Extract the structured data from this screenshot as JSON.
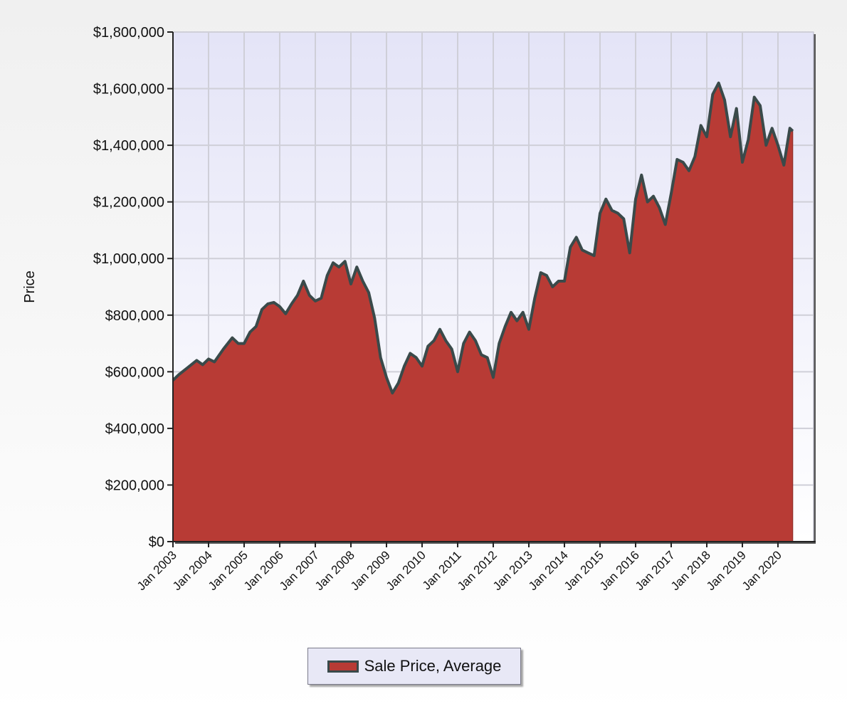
{
  "chart_data": {
    "type": "area",
    "title": "",
    "xlabel": "",
    "ylabel": "Price",
    "ylim": [
      0,
      1800000
    ],
    "y_ticks": [
      0,
      200000,
      400000,
      600000,
      800000,
      1000000,
      1200000,
      1400000,
      1600000,
      1800000
    ],
    "y_tick_labels": [
      "$0",
      "$200,000",
      "$400,000",
      "$600,000",
      "$800,000",
      "$1,000,000",
      "$1,200,000",
      "$1,400,000",
      "$1,600,000",
      "$1,800,000"
    ],
    "x_range": [
      "2003-01",
      "2020-12"
    ],
    "x_tick_labels": [
      "Jan 2003",
      "Jan 2004",
      "Jan 2005",
      "Jan 2006",
      "Jan 2007",
      "Jan 2008",
      "Jan 2009",
      "Jan 2010",
      "Jan 2011",
      "Jan 2012",
      "Jan 2013",
      "Jan 2014",
      "Jan 2015",
      "Jan 2016",
      "Jan 2017",
      "Jan 2018",
      "Jan 2019",
      "Jan 2020"
    ],
    "grid": true,
    "legend_position": "bottom-center",
    "colors": {
      "fill": "#b83b35",
      "line": "#3a4a4a",
      "plot_bg_top": "#e4e4f7",
      "plot_bg_bottom": "#ffffff"
    },
    "series": [
      {
        "name": "Sale Price, Average",
        "points": [
          [
            "2003-01",
            570000
          ],
          [
            "2003-03",
            590000
          ],
          [
            "2003-06",
            615000
          ],
          [
            "2003-09",
            640000
          ],
          [
            "2003-11",
            625000
          ],
          [
            "2004-01",
            645000
          ],
          [
            "2004-03",
            635000
          ],
          [
            "2004-06",
            680000
          ],
          [
            "2004-09",
            720000
          ],
          [
            "2004-11",
            700000
          ],
          [
            "2005-01",
            700000
          ],
          [
            "2005-03",
            740000
          ],
          [
            "2005-05",
            760000
          ],
          [
            "2005-07",
            820000
          ],
          [
            "2005-09",
            840000
          ],
          [
            "2005-11",
            845000
          ],
          [
            "2006-01",
            830000
          ],
          [
            "2006-03",
            805000
          ],
          [
            "2006-05",
            840000
          ],
          [
            "2006-07",
            870000
          ],
          [
            "2006-09",
            920000
          ],
          [
            "2006-11",
            870000
          ],
          [
            "2007-01",
            850000
          ],
          [
            "2007-03",
            860000
          ],
          [
            "2007-05",
            940000
          ],
          [
            "2007-07",
            985000
          ],
          [
            "2007-09",
            970000
          ],
          [
            "2007-11",
            990000
          ],
          [
            "2008-01",
            910000
          ],
          [
            "2008-03",
            970000
          ],
          [
            "2008-05",
            920000
          ],
          [
            "2008-07",
            880000
          ],
          [
            "2008-09",
            790000
          ],
          [
            "2008-11",
            650000
          ],
          [
            "2009-01",
            580000
          ],
          [
            "2009-03",
            525000
          ],
          [
            "2009-05",
            560000
          ],
          [
            "2009-07",
            620000
          ],
          [
            "2009-09",
            665000
          ],
          [
            "2009-11",
            650000
          ],
          [
            "2010-01",
            620000
          ],
          [
            "2010-03",
            690000
          ],
          [
            "2010-05",
            710000
          ],
          [
            "2010-07",
            750000
          ],
          [
            "2010-09",
            710000
          ],
          [
            "2010-11",
            680000
          ],
          [
            "2011-01",
            600000
          ],
          [
            "2011-03",
            700000
          ],
          [
            "2011-05",
            740000
          ],
          [
            "2011-07",
            710000
          ],
          [
            "2011-09",
            660000
          ],
          [
            "2011-11",
            650000
          ],
          [
            "2012-01",
            580000
          ],
          [
            "2012-03",
            700000
          ],
          [
            "2012-05",
            760000
          ],
          [
            "2012-07",
            810000
          ],
          [
            "2012-09",
            780000
          ],
          [
            "2012-11",
            810000
          ],
          [
            "2013-01",
            750000
          ],
          [
            "2013-03",
            860000
          ],
          [
            "2013-05",
            950000
          ],
          [
            "2013-07",
            940000
          ],
          [
            "2013-09",
            900000
          ],
          [
            "2013-11",
            920000
          ],
          [
            "2014-01",
            920000
          ],
          [
            "2014-03",
            1040000
          ],
          [
            "2014-05",
            1075000
          ],
          [
            "2014-07",
            1030000
          ],
          [
            "2014-09",
            1020000
          ],
          [
            "2014-11",
            1010000
          ],
          [
            "2015-01",
            1160000
          ],
          [
            "2015-03",
            1210000
          ],
          [
            "2015-05",
            1170000
          ],
          [
            "2015-07",
            1160000
          ],
          [
            "2015-09",
            1140000
          ],
          [
            "2015-11",
            1020000
          ],
          [
            "2016-01",
            1210000
          ],
          [
            "2016-03",
            1295000
          ],
          [
            "2016-05",
            1200000
          ],
          [
            "2016-07",
            1220000
          ],
          [
            "2016-09",
            1180000
          ],
          [
            "2016-11",
            1120000
          ],
          [
            "2017-01",
            1230000
          ],
          [
            "2017-03",
            1350000
          ],
          [
            "2017-05",
            1340000
          ],
          [
            "2017-07",
            1310000
          ],
          [
            "2017-09",
            1360000
          ],
          [
            "2017-11",
            1470000
          ],
          [
            "2018-01",
            1430000
          ],
          [
            "2018-03",
            1580000
          ],
          [
            "2018-05",
            1620000
          ],
          [
            "2018-07",
            1560000
          ],
          [
            "2018-09",
            1430000
          ],
          [
            "2018-11",
            1530000
          ],
          [
            "2019-01",
            1340000
          ],
          [
            "2019-03",
            1420000
          ],
          [
            "2019-05",
            1570000
          ],
          [
            "2019-07",
            1540000
          ],
          [
            "2019-09",
            1400000
          ],
          [
            "2019-11",
            1460000
          ],
          [
            "2020-01",
            1400000
          ],
          [
            "2020-03",
            1330000
          ],
          [
            "2020-05",
            1460000
          ],
          [
            "2020-06",
            1450000
          ]
        ]
      }
    ]
  }
}
